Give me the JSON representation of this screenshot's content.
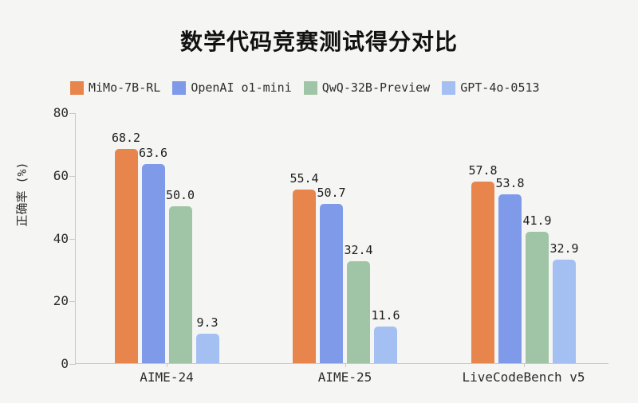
{
  "title": "数学代码竞赛测试得分对比",
  "accent_colors": {
    "background": "#f5f6f4",
    "axis": "#c7cac7",
    "text": "#2a2a2a"
  },
  "chart_data": {
    "type": "bar",
    "title": "数学代码竞赛测试得分对比",
    "xlabel": "",
    "ylabel": "正确率 (%)",
    "ylim": [
      0,
      80
    ],
    "yticks": [
      0,
      20,
      40,
      60,
      80
    ],
    "grid": false,
    "legend_position": "top-left",
    "categories": [
      "AIME-24",
      "AIME-25",
      "LiveCodeBench v5"
    ],
    "series": [
      {
        "name": "MiMo-7B-RL",
        "color": "#e8854d",
        "values": [
          68.2,
          55.4,
          57.8
        ],
        "labels": [
          "68.2",
          "55.4",
          "57.8"
        ]
      },
      {
        "name": "OpenAI o1-mini",
        "color": "#7e9ae8",
        "values": [
          63.6,
          50.7,
          53.8
        ],
        "labels": [
          "63.6",
          "50.7",
          "53.8"
        ]
      },
      {
        "name": "QwQ-32B-Preview",
        "color": "#a0c5a6",
        "values": [
          50.0,
          32.4,
          41.9
        ],
        "labels": [
          "50.0",
          "32.4",
          "41.9"
        ]
      },
      {
        "name": "GPT-4o-0513",
        "color": "#a4bff2",
        "values": [
          9.3,
          11.6,
          32.9
        ],
        "labels": [
          "9.3",
          "11.6",
          "32.9"
        ]
      }
    ]
  }
}
